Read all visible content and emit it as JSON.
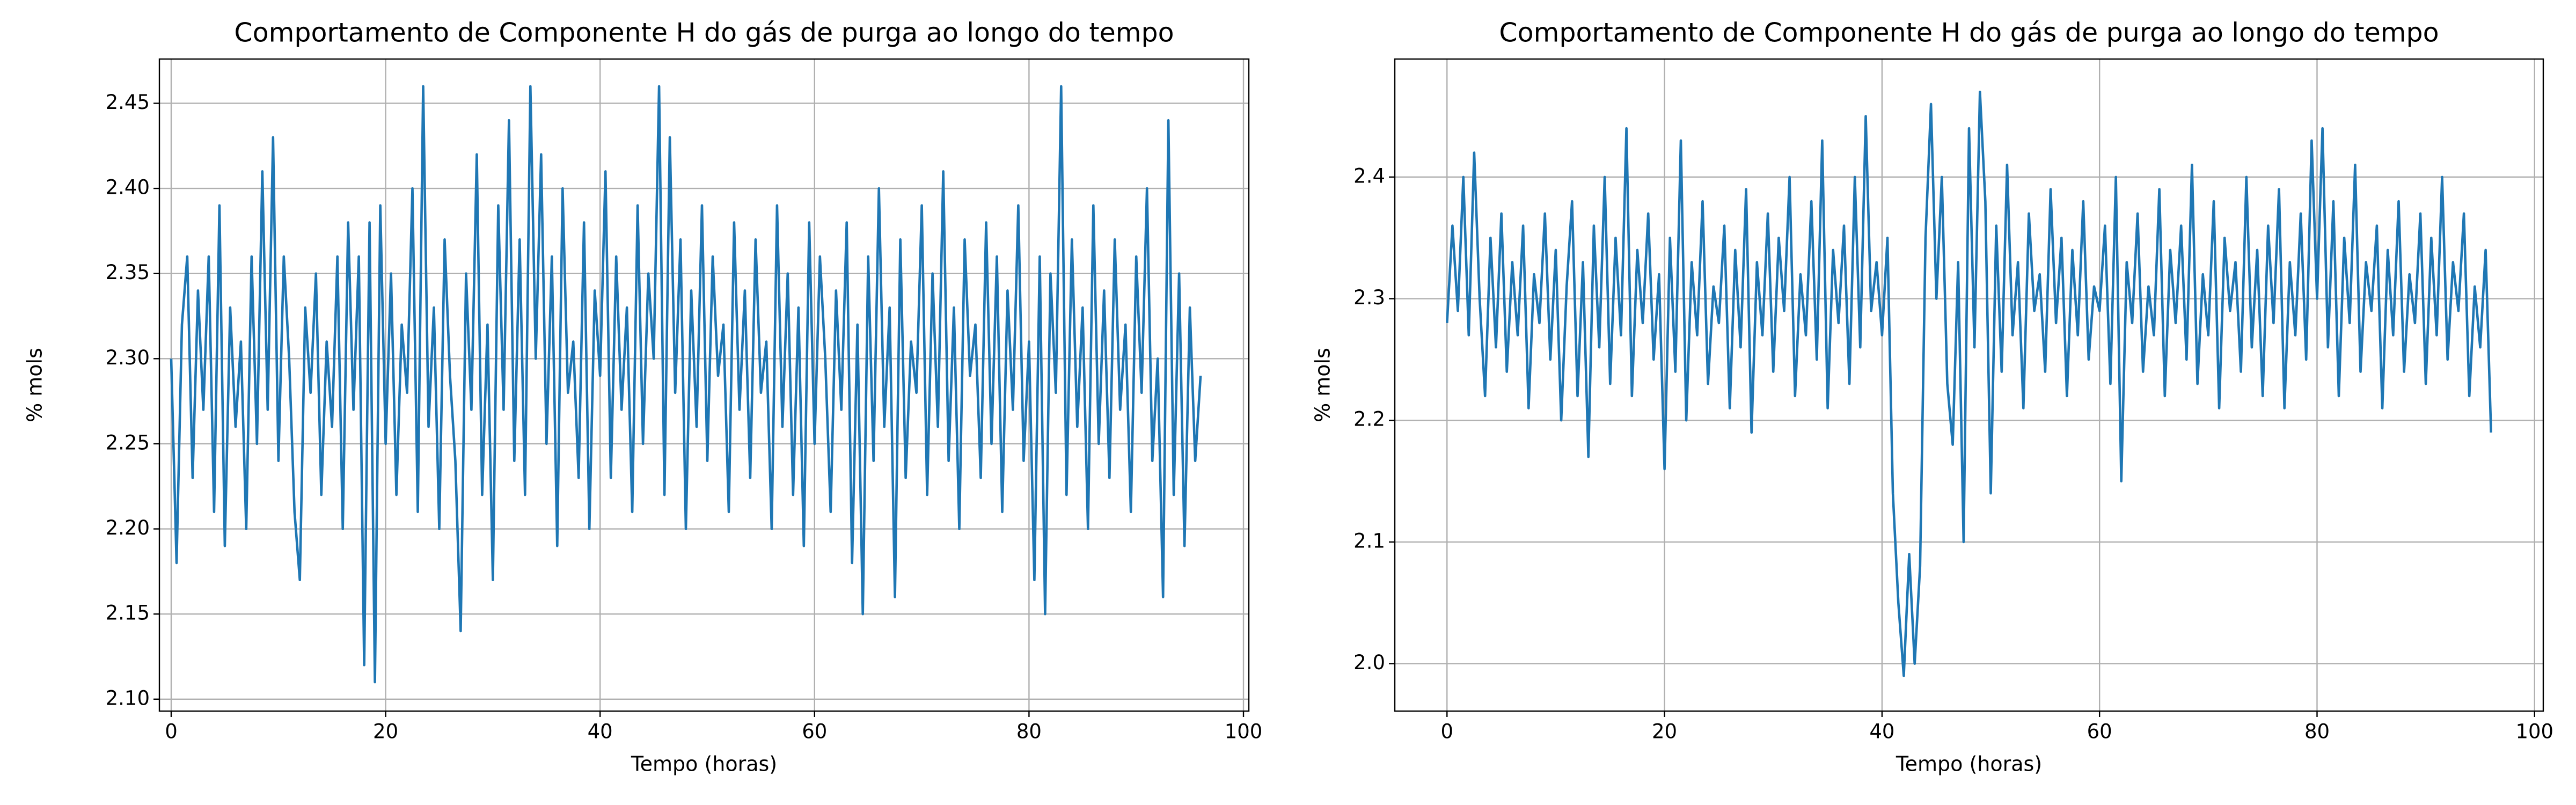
{
  "chart_data": [
    {
      "type": "line",
      "title": "Comportamento de Componente H do gás de purga ao longo do tempo",
      "xlabel": "Tempo (horas)",
      "ylabel": "% mols",
      "xlim": [
        -1.1,
        100.5
      ],
      "ylim": [
        2.093,
        2.476
      ],
      "xticks": [
        0,
        20,
        40,
        60,
        80,
        100
      ],
      "yticks": [
        {
          "value": 2.1,
          "label": "2.10"
        },
        2.15,
        {
          "value": 2.2,
          "label": "2.20"
        },
        2.25,
        {
          "value": 2.3,
          "label": "2.30"
        },
        2.35,
        {
          "value": 2.4,
          "label": "2.40"
        },
        2.45
      ],
      "grid": true,
      "x": [
        0,
        0.5,
        1,
        1.5,
        2,
        2.5,
        3,
        3.5,
        4,
        4.5,
        5,
        5.5,
        6,
        6.5,
        7,
        7.5,
        8,
        8.5,
        9,
        9.5,
        10,
        10.5,
        11,
        11.5,
        12,
        12.5,
        13,
        13.5,
        14,
        14.5,
        15,
        15.5,
        16,
        16.5,
        17,
        17.5,
        18,
        18.5,
        19,
        19.5,
        20,
        20.5,
        21,
        21.5,
        22,
        22.5,
        23,
        23.5,
        24,
        24.5,
        25,
        25.5,
        26,
        26.5,
        27,
        27.5,
        28,
        28.5,
        29,
        29.5,
        30,
        30.5,
        31,
        31.5,
        32,
        32.5,
        33,
        33.5,
        34,
        34.5,
        35,
        35.5,
        36,
        36.5,
        37,
        37.5,
        38,
        38.5,
        39,
        39.5,
        40,
        40.5,
        41,
        41.5,
        42,
        42.5,
        43,
        43.5,
        44,
        44.5,
        45,
        45.5,
        46,
        46.5,
        47,
        47.5,
        48,
        48.5,
        49,
        49.5,
        50,
        50.5,
        51,
        51.5,
        52,
        52.5,
        53,
        53.5,
        54,
        54.5,
        55,
        55.5,
        56,
        56.5,
        57,
        57.5,
        58,
        58.5,
        59,
        59.5,
        60,
        60.5,
        61,
        61.5,
        62,
        62.5,
        63,
        63.5,
        64,
        64.5,
        65,
        65.5,
        66,
        66.5,
        67,
        67.5,
        68,
        68.5,
        69,
        69.5,
        70,
        70.5,
        71,
        71.5,
        72,
        72.5,
        73,
        73.5,
        74,
        74.5,
        75,
        75.5,
        76,
        76.5,
        77,
        77.5,
        78,
        78.5,
        79,
        79.5,
        80,
        80.5,
        81,
        81.5,
        82,
        82.5,
        83,
        83.5,
        84,
        84.5,
        85,
        85.5,
        86,
        86.5,
        87,
        87.5,
        88,
        88.5,
        89,
        89.5,
        90,
        90.5,
        91,
        91.5,
        92,
        92.5,
        93,
        93.5,
        94,
        94.5,
        95,
        95.5,
        96
      ],
      "series": [
        {
          "color": "#1f77b4",
          "values": [
            2.3,
            2.18,
            2.32,
            2.36,
            2.23,
            2.34,
            2.27,
            2.36,
            2.21,
            2.39,
            2.19,
            2.33,
            2.26,
            2.31,
            2.2,
            2.36,
            2.25,
            2.41,
            2.27,
            2.43,
            2.24,
            2.36,
            2.3,
            2.21,
            2.17,
            2.33,
            2.28,
            2.35,
            2.22,
            2.31,
            2.26,
            2.36,
            2.2,
            2.38,
            2.27,
            2.36,
            2.12,
            2.38,
            2.11,
            2.39,
            2.25,
            2.35,
            2.22,
            2.32,
            2.28,
            2.4,
            2.21,
            2.46,
            2.26,
            2.33,
            2.2,
            2.37,
            2.29,
            2.24,
            2.14,
            2.35,
            2.27,
            2.42,
            2.22,
            2.32,
            2.17,
            2.39,
            2.27,
            2.44,
            2.24,
            2.37,
            2.22,
            2.46,
            2.3,
            2.42,
            2.25,
            2.36,
            2.19,
            2.4,
            2.28,
            2.31,
            2.23,
            2.38,
            2.2,
            2.34,
            2.29,
            2.41,
            2.23,
            2.36,
            2.27,
            2.33,
            2.21,
            2.39,
            2.25,
            2.35,
            2.3,
            2.46,
            2.22,
            2.43,
            2.28,
            2.37,
            2.2,
            2.34,
            2.26,
            2.39,
            2.24,
            2.36,
            2.29,
            2.32,
            2.21,
            2.38,
            2.27,
            2.34,
            2.23,
            2.37,
            2.28,
            2.31,
            2.2,
            2.39,
            2.26,
            2.35,
            2.22,
            2.33,
            2.19,
            2.38,
            2.25,
            2.36,
            2.3,
            2.21,
            2.34,
            2.27,
            2.38,
            2.18,
            2.32,
            2.15,
            2.36,
            2.24,
            2.4,
            2.26,
            2.33,
            2.16,
            2.37,
            2.23,
            2.31,
            2.28,
            2.39,
            2.22,
            2.35,
            2.26,
            2.41,
            2.24,
            2.33,
            2.2,
            2.37,
            2.29,
            2.32,
            2.23,
            2.38,
            2.25,
            2.36,
            2.21,
            2.34,
            2.27,
            2.39,
            2.24,
            2.31,
            2.17,
            2.36,
            2.15,
            2.35,
            2.28,
            2.46,
            2.22,
            2.37,
            2.26,
            2.33,
            2.2,
            2.39,
            2.25,
            2.34,
            2.23,
            2.37,
            2.27,
            2.32,
            2.21,
            2.36,
            2.28,
            2.4,
            2.24,
            2.3,
            2.16,
            2.44,
            2.22,
            2.35,
            2.19,
            2.33,
            2.24,
            2.29
          ]
        }
      ]
    },
    {
      "type": "line",
      "title": "Comportamento de Componente H do gás de purga ao longo do tempo",
      "xlabel": "Tempo (horas)",
      "ylabel": "% mols",
      "xlim": [
        -4.8,
        100.8
      ],
      "ylim": [
        1.961,
        2.497
      ],
      "xticks": [
        0,
        20,
        40,
        60,
        80,
        100
      ],
      "yticks": [
        {
          "value": 2.0,
          "label": "2.0"
        },
        2.1,
        2.2,
        2.3,
        2.4
      ],
      "grid": true,
      "x": [
        0,
        0.5,
        1,
        1.5,
        2,
        2.5,
        3,
        3.5,
        4,
        4.5,
        5,
        5.5,
        6,
        6.5,
        7,
        7.5,
        8,
        8.5,
        9,
        9.5,
        10,
        10.5,
        11,
        11.5,
        12,
        12.5,
        13,
        13.5,
        14,
        14.5,
        15,
        15.5,
        16,
        16.5,
        17,
        17.5,
        18,
        18.5,
        19,
        19.5,
        20,
        20.5,
        21,
        21.5,
        22,
        22.5,
        23,
        23.5,
        24,
        24.5,
        25,
        25.5,
        26,
        26.5,
        27,
        27.5,
        28,
        28.5,
        29,
        29.5,
        30,
        30.5,
        31,
        31.5,
        32,
        32.5,
        33,
        33.5,
        34,
        34.5,
        35,
        35.5,
        36,
        36.5,
        37,
        37.5,
        38,
        38.5,
        39,
        39.5,
        40,
        40.5,
        41,
        41.5,
        42,
        42.5,
        43,
        43.5,
        44,
        44.5,
        45,
        45.5,
        46,
        46.5,
        47,
        47.5,
        48,
        48.5,
        49,
        49.5,
        50,
        50.5,
        51,
        51.5,
        52,
        52.5,
        53,
        53.5,
        54,
        54.5,
        55,
        55.5,
        56,
        56.5,
        57,
        57.5,
        58,
        58.5,
        59,
        59.5,
        60,
        60.5,
        61,
        61.5,
        62,
        62.5,
        63,
        63.5,
        64,
        64.5,
        65,
        65.5,
        66,
        66.5,
        67,
        67.5,
        68,
        68.5,
        69,
        69.5,
        70,
        70.5,
        71,
        71.5,
        72,
        72.5,
        73,
        73.5,
        74,
        74.5,
        75,
        75.5,
        76,
        76.5,
        77,
        77.5,
        78,
        78.5,
        79,
        79.5,
        80,
        80.5,
        81,
        81.5,
        82,
        82.5,
        83,
        83.5,
        84,
        84.5,
        85,
        85.5,
        86,
        86.5,
        87,
        87.5,
        88,
        88.5,
        89,
        89.5,
        90,
        90.5,
        91,
        91.5,
        92,
        92.5,
        93,
        93.5,
        94,
        94.5,
        95,
        95.5,
        96
      ],
      "series": [
        {
          "color": "#1f77b4",
          "values": [
            2.28,
            2.36,
            2.29,
            2.4,
            2.27,
            2.42,
            2.3,
            2.22,
            2.35,
            2.26,
            2.37,
            2.24,
            2.33,
            2.27,
            2.36,
            2.21,
            2.32,
            2.28,
            2.37,
            2.25,
            2.34,
            2.2,
            2.31,
            2.38,
            2.22,
            2.33,
            2.17,
            2.36,
            2.26,
            2.4,
            2.23,
            2.35,
            2.27,
            2.44,
            2.22,
            2.34,
            2.28,
            2.37,
            2.25,
            2.32,
            2.16,
            2.35,
            2.24,
            2.43,
            2.2,
            2.33,
            2.27,
            2.38,
            2.23,
            2.31,
            2.28,
            2.36,
            2.21,
            2.34,
            2.26,
            2.39,
            2.19,
            2.33,
            2.27,
            2.37,
            2.24,
            2.35,
            2.29,
            2.4,
            2.22,
            2.32,
            2.27,
            2.38,
            2.25,
            2.43,
            2.21,
            2.34,
            2.28,
            2.36,
            2.23,
            2.4,
            2.26,
            2.45,
            2.29,
            2.33,
            2.27,
            2.35,
            2.14,
            2.05,
            1.99,
            2.09,
            2.0,
            2.08,
            2.35,
            2.46,
            2.3,
            2.4,
            2.23,
            2.18,
            2.33,
            2.1,
            2.44,
            2.26,
            2.47,
            2.38,
            2.14,
            2.36,
            2.24,
            2.41,
            2.27,
            2.33,
            2.21,
            2.37,
            2.29,
            2.32,
            2.24,
            2.39,
            2.28,
            2.35,
            2.22,
            2.34,
            2.27,
            2.38,
            2.25,
            2.31,
            2.29,
            2.36,
            2.23,
            2.4,
            2.15,
            2.33,
            2.28,
            2.37,
            2.24,
            2.31,
            2.27,
            2.39,
            2.22,
            2.34,
            2.28,
            2.36,
            2.25,
            2.41,
            2.23,
            2.32,
            2.27,
            2.38,
            2.21,
            2.35,
            2.29,
            2.33,
            2.24,
            2.4,
            2.26,
            2.34,
            2.22,
            2.36,
            2.28,
            2.39,
            2.21,
            2.33,
            2.27,
            2.37,
            2.25,
            2.43,
            2.3,
            2.44,
            2.26,
            2.38,
            2.22,
            2.35,
            2.28,
            2.41,
            2.24,
            2.33,
            2.29,
            2.36,
            2.21,
            2.34,
            2.27,
            2.38,
            2.24,
            2.32,
            2.28,
            2.37,
            2.23,
            2.35,
            2.27,
            2.4,
            2.25,
            2.33,
            2.29,
            2.37,
            2.22,
            2.31,
            2.26,
            2.34,
            2.19
          ]
        }
      ]
    }
  ]
}
